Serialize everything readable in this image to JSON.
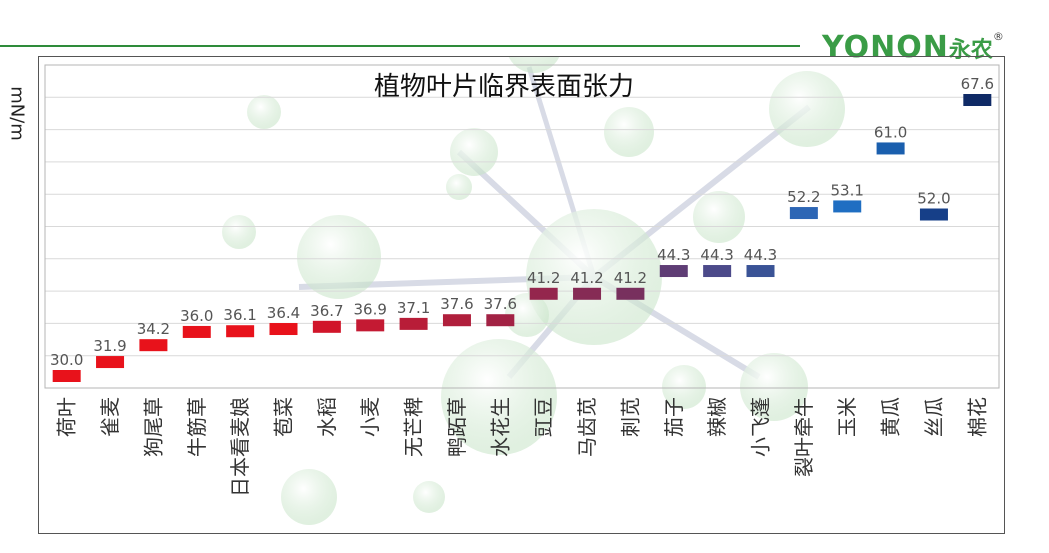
{
  "logo": {
    "brand": "YONON",
    "cn": "永农",
    "reg": "®"
  },
  "unit_label": "mN/m",
  "chart_data": {
    "type": "bar",
    "title": "植物叶片临界表面张力",
    "ylabel": "mN/m",
    "grid": true,
    "categories": [
      "荷叶",
      "雀麦",
      "狗尾草",
      "牛筋草",
      "日本看麦娘",
      "苞菜",
      "水稻",
      "小麦",
      "无芒稗",
      "鸭跖草",
      "水花生",
      "豇豆",
      "马齿苋",
      "刺苋",
      "茄子",
      "辣椒",
      "小飞蓬",
      "裂叶牵牛",
      "玉米",
      "黄瓜",
      "丝瓜",
      "棉花"
    ],
    "values": [
      30.0,
      31.9,
      34.2,
      36.0,
      36.1,
      36.4,
      36.7,
      36.9,
      37.1,
      37.6,
      37.6,
      41.2,
      41.2,
      41.2,
      44.3,
      44.3,
      44.3,
      52.2,
      53.1,
      61.0,
      52.0,
      67.6
    ],
    "value_labels": [
      "30.0",
      "31.9",
      "34.2",
      "36.0",
      "36.1",
      "36.4",
      "36.7",
      "36.9",
      "37.1",
      "37.6",
      "37.6",
      "41.2",
      "41.2",
      "41.2",
      "44.3",
      "44.3",
      "44.3",
      "52.2",
      "53.1",
      "61.0",
      "52.0",
      "67.6"
    ],
    "colors": [
      "#e8121b",
      "#e8121b",
      "#e8121b",
      "#e8121b",
      "#e8121b",
      "#e8121b",
      "#d1152a",
      "#c41a33",
      "#b81d38",
      "#b01f3c",
      "#a22244",
      "#94264d",
      "#862b55",
      "#78305e",
      "#5f3d75",
      "#4c4a8a",
      "#3a5396",
      "#2d66b5",
      "#1f6ec2",
      "#1a5fae",
      "#163f88",
      "#0f2a66"
    ]
  }
}
